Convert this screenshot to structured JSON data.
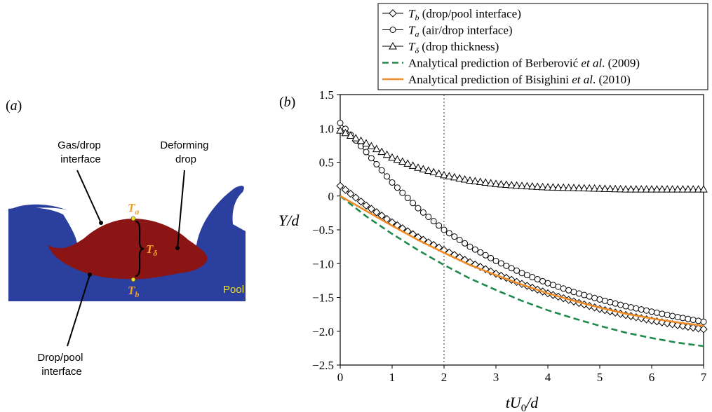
{
  "panel_a": {
    "label": "(a)",
    "gas_drop_label": [
      "Gas/drop",
      "interface"
    ],
    "deforming_drop_label": [
      "Deforming",
      "drop"
    ],
    "drop_pool_label": [
      "Drop/pool",
      "interface"
    ],
    "pool_label": "Pool",
    "Ta_label": "T",
    "Ta_sub": "a",
    "Tb_label": "T",
    "Tb_sub": "b",
    "Tdelta_label": "T",
    "Tdelta_sub": "δ",
    "colors": {
      "pool": "#2a3f9e",
      "drop": "#8b1414",
      "marker": "#f0e020",
      "label": "#f0a030",
      "pool_text": "#f0e020"
    }
  },
  "panel_b": {
    "label": "(b)",
    "legend": [
      {
        "sym": "T",
        "sub": "b",
        "text": " (drop/pool interface)"
      },
      {
        "sym": "T",
        "sub": "a",
        "text": " (air/drop interface)"
      },
      {
        "sym": "T",
        "sub": "δ",
        "text": " (drop thickness)"
      },
      {
        "pre": "Analytical prediction of Berberović ",
        "em": "et al",
        "post": ". (2009)"
      },
      {
        "pre": "Analytical prediction of Bisighini ",
        "em": "et al",
        "post": ". (2010)"
      }
    ]
  },
  "chart_data": {
    "type": "line",
    "xlabel": "tU0/d",
    "ylabel": "Y/d",
    "xlim": [
      0,
      7
    ],
    "ylim": [
      -2.5,
      1.5
    ],
    "xticks": [
      "0",
      "1",
      "2",
      "3",
      "4",
      "5",
      "6",
      "7"
    ],
    "yticks": [
      "1.5",
      "1.0",
      "0.5",
      "0",
      "−0.5",
      "−1.0",
      "−1.5",
      "−2.0",
      "−2.5"
    ],
    "vline_x": 2,
    "grid": false,
    "legend_position": "above plot",
    "series": [
      {
        "name": "Tb (drop/pool interface)",
        "marker": "diamond",
        "color": "#000000",
        "x": [
          0,
          0.5,
          1,
          1.5,
          2,
          2.5,
          3,
          3.5,
          4,
          4.5,
          5,
          5.5,
          6,
          6.5,
          7
        ],
        "y": [
          0.15,
          -0.14,
          -0.39,
          -0.61,
          -0.8,
          -0.98,
          -1.15,
          -1.3,
          -1.44,
          -1.56,
          -1.67,
          -1.76,
          -1.84,
          -1.91,
          -1.97
        ]
      },
      {
        "name": "Ta (air/drop interface)",
        "marker": "circle",
        "color": "#000000",
        "x": [
          0,
          0.5,
          1,
          1.5,
          2,
          2.5,
          3,
          3.5,
          4,
          4.5,
          5,
          5.5,
          6,
          6.5,
          7
        ],
        "y": [
          1.08,
          0.65,
          0.2,
          -0.18,
          -0.5,
          -0.75,
          -0.96,
          -1.14,
          -1.29,
          -1.42,
          -1.53,
          -1.63,
          -1.71,
          -1.79,
          -1.86
        ]
      },
      {
        "name": "Tδ (drop thickness)",
        "marker": "triangle",
        "color": "#000000",
        "x": [
          0,
          0.5,
          1,
          1.5,
          2,
          2.5,
          3,
          3.5,
          4,
          4.5,
          5,
          5.5,
          6,
          6.5,
          7
        ],
        "y": [
          0.97,
          0.78,
          0.57,
          0.42,
          0.31,
          0.23,
          0.18,
          0.15,
          0.13,
          0.12,
          0.11,
          0.1,
          0.1,
          0.1,
          0.1
        ]
      },
      {
        "name": "Analytical prediction of Berberović et al. (2009)",
        "style": "dashed",
        "color": "#1f8a4c",
        "x": [
          0,
          0.5,
          1,
          1.5,
          2,
          2.5,
          3,
          3.5,
          4,
          4.5,
          5,
          5.5,
          6,
          6.5,
          7
        ],
        "y": [
          0,
          -0.3,
          -0.56,
          -0.8,
          -1.02,
          -1.22,
          -1.39,
          -1.55,
          -1.69,
          -1.81,
          -1.92,
          -2.02,
          -2.1,
          -2.17,
          -2.22
        ]
      },
      {
        "name": "Analytical prediction of Bisighini et al. (2010)",
        "style": "solid",
        "color": "#f08a24",
        "x": [
          0,
          0.5,
          1,
          1.5,
          2,
          2.5,
          3,
          3.5,
          4,
          4.5,
          5,
          5.5,
          6,
          6.5,
          7
        ],
        "y": [
          0,
          -0.22,
          -0.44,
          -0.65,
          -0.84,
          -1.02,
          -1.17,
          -1.31,
          -1.44,
          -1.55,
          -1.65,
          -1.74,
          -1.81,
          -1.87,
          -1.92
        ]
      }
    ]
  }
}
